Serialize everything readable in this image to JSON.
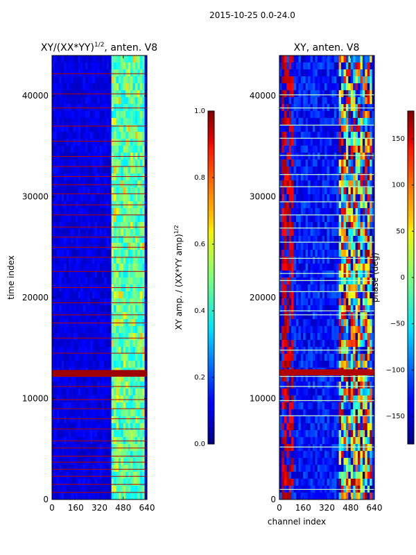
{
  "figure": {
    "suptitle": "2015-10-25 0.0-24.0"
  },
  "chart_data": [
    {
      "type": "heatmap",
      "title": "XY/(XX*YY)^{1/2}, anten. V8",
      "title_main": "XY/(XX*YY)",
      "title_sup": "1/2",
      "title_rest": ", anten. V8",
      "xlabel": "",
      "ylabel": "time index",
      "xlim": [
        0,
        640
      ],
      "ylim": [
        0,
        44000
      ],
      "xticks": [
        0,
        160,
        320,
        480,
        640
      ],
      "yticks": [
        0,
        10000,
        20000,
        30000,
        40000
      ],
      "colormap": "jet",
      "colorbar": {
        "label_main": "XY amp. / (XX*YY amp)",
        "label_sup": "1/2",
        "range": [
          0.0,
          1.0
        ],
        "ticks": [
          0.0,
          0.2,
          0.4,
          0.6,
          0.8,
          1.0
        ],
        "tick_labels": [
          "0.0",
          "0.2",
          "0.4",
          "0.6",
          "0.8",
          "1.0"
        ]
      },
      "features": {
        "background_level": 0.1,
        "active_band_channels": [
          400,
          620
        ],
        "active_band_levels": [
          0.35,
          0.55
        ],
        "high_amplitude_rows": [
          12200,
          12800
        ],
        "flagged_rows": [
          700,
          1500,
          2300,
          3000,
          3700,
          4300,
          5100,
          5800,
          7000,
          8000,
          9000,
          9900,
          11200,
          12200,
          12500,
          12800,
          14500,
          16000,
          17500,
          18300,
          19500,
          21000,
          22600,
          24000,
          25000,
          26000,
          27000,
          28200,
          29200,
          30300,
          31200,
          32000,
          33000,
          34000,
          35500,
          37000,
          38800,
          40200,
          42200
        ]
      }
    },
    {
      "type": "heatmap",
      "title": "XY, anten. V8",
      "xlabel": "channel index",
      "ylabel": "",
      "xlim": [
        0,
        640
      ],
      "ylim": [
        0,
        44000
      ],
      "xticks": [
        0,
        160,
        320,
        480,
        640
      ],
      "yticks": [
        0,
        10000,
        20000,
        30000,
        40000
      ],
      "colormap": "jet",
      "colorbar": {
        "label": "phase (deg)",
        "range": [
          -180,
          180
        ],
        "ticks": [
          -150,
          -100,
          -50,
          0,
          50,
          100,
          150
        ],
        "tick_labels": [
          "−150",
          "−100",
          "−50",
          "0",
          "50",
          "100",
          "150"
        ]
      },
      "features": {
        "background_level": -130,
        "active_band_channels": [
          400,
          620
        ],
        "red_columns": [
          20,
          100
        ],
        "high_phase_rows": [
          12300,
          12900
        ],
        "light_rows": [
          1000,
          5200,
          8300,
          9800,
          11200,
          12200,
          14800,
          18300,
          18700,
          20600,
          21700,
          22400,
          23900,
          25500,
          26900,
          28200,
          29500,
          31000,
          32200,
          34100,
          35800,
          37100,
          38800,
          40100
        ]
      }
    }
  ]
}
